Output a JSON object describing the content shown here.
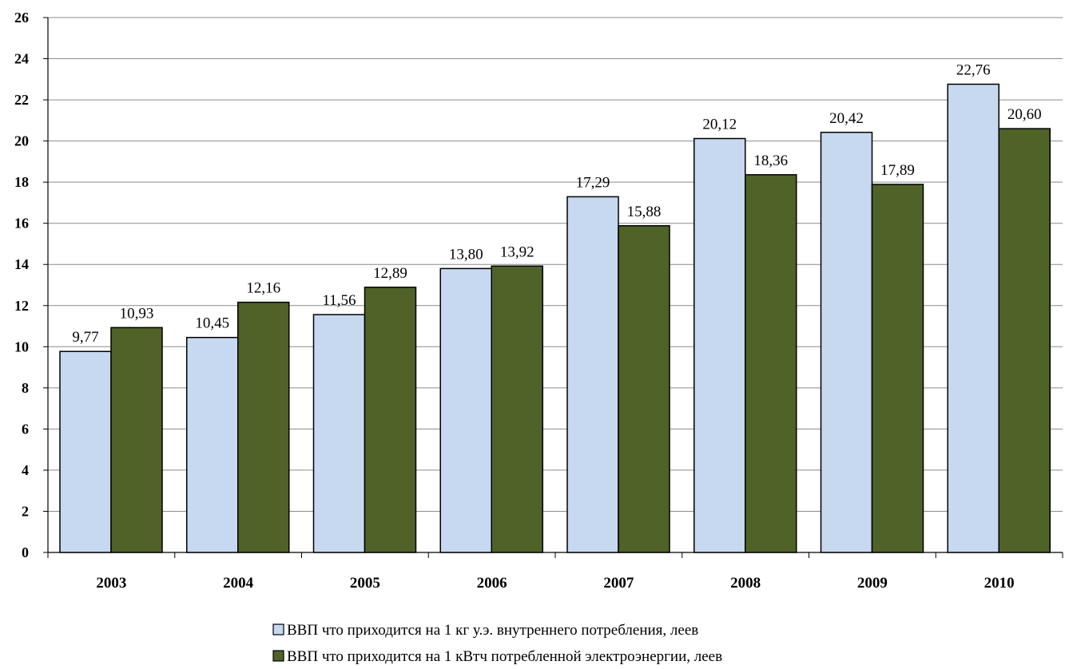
{
  "chart_data": {
    "type": "bar",
    "categories": [
      "2003",
      "2004",
      "2005",
      "2006",
      "2007",
      "2008",
      "2009",
      "2010"
    ],
    "series": [
      {
        "name": "ВВП что приходится на 1 кг у.э. внутреннего потребления, леев",
        "color": "#c6d9f1",
        "values": [
          9.77,
          10.45,
          11.56,
          13.8,
          17.29,
          20.12,
          20.42,
          22.76
        ],
        "labels": [
          "9,77",
          "10,45",
          "11,56",
          "13,80",
          "17,29",
          "20,12",
          "20,42",
          "22,76"
        ]
      },
      {
        "name": "ВВП что приходится на 1 кВтч потребленной электроэнергии, леев",
        "color": "#4f6228",
        "values": [
          10.93,
          12.16,
          12.89,
          13.92,
          15.88,
          18.36,
          17.89,
          20.6
        ],
        "labels": [
          "10,93",
          "12,16",
          "12,89",
          "13,92",
          "15,88",
          "18,36",
          "17,89",
          "20,60"
        ]
      }
    ],
    "yticks": [
      "0",
      "2",
      "4",
      "6",
      "8",
      "10",
      "12",
      "14",
      "16",
      "18",
      "20",
      "22",
      "24",
      "26"
    ],
    "ylim": [
      0,
      26
    ],
    "ystep": 2,
    "grid": true,
    "legend_position": "bottom",
    "xlabel": "",
    "ylabel": "",
    "title": ""
  }
}
